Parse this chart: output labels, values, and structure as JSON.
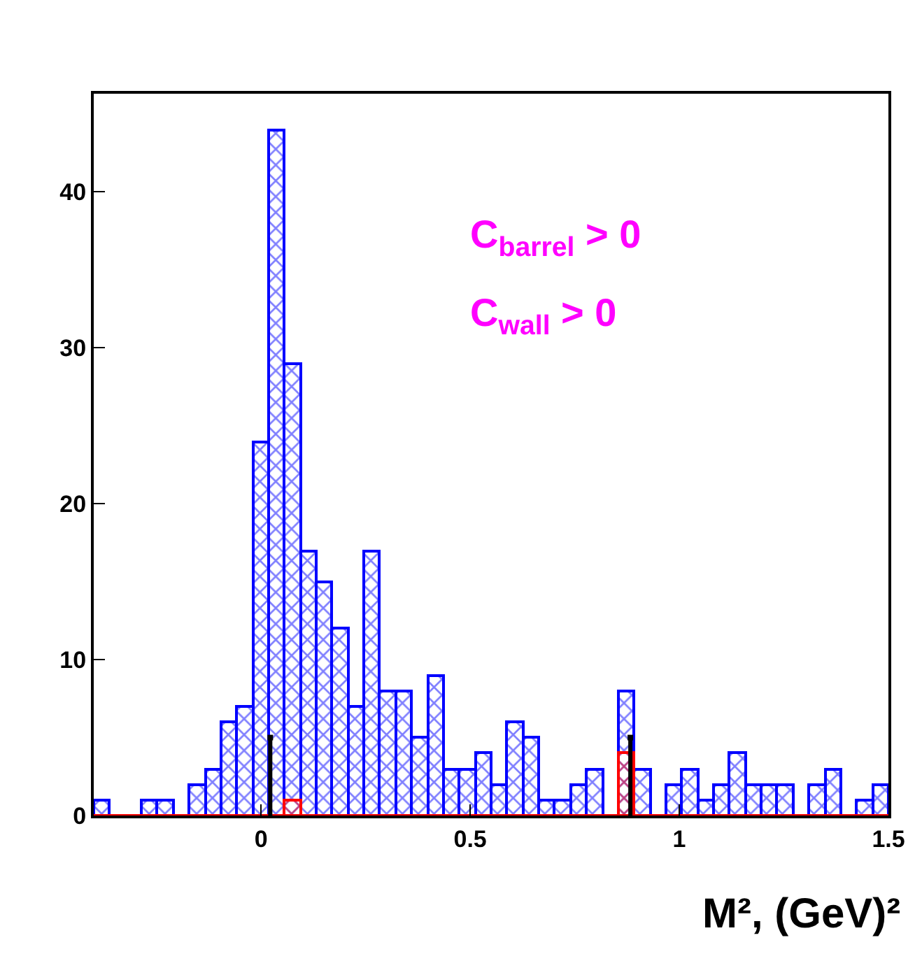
{
  "chart_data": {
    "type": "histogram",
    "xlabel": "M², (GeV)²",
    "bins": [
      -0.4,
      -0.362,
      -0.324,
      -0.286,
      -0.248,
      -0.21,
      -0.172,
      -0.134,
      -0.096,
      -0.058,
      -0.02,
      0.018,
      0.056,
      0.094,
      0.132,
      0.17,
      0.208,
      0.246,
      0.284,
      0.322,
      0.36,
      0.398,
      0.436,
      0.474,
      0.512,
      0.55,
      0.588,
      0.626,
      0.664,
      0.702,
      0.74,
      0.778,
      0.816,
      0.854,
      0.892,
      0.93,
      0.968,
      1.006,
      1.044,
      1.082,
      1.12,
      1.158,
      1.196,
      1.234,
      1.272,
      1.31,
      1.348,
      1.386,
      1.424,
      1.462,
      1.5
    ],
    "series": [
      {
        "color": "#0000ff",
        "values": [
          1,
          0,
          0,
          1,
          1,
          0,
          2,
          3,
          6,
          7,
          24,
          44,
          29,
          17,
          15,
          12,
          7,
          17,
          8,
          8,
          5,
          9,
          3,
          3,
          4,
          2,
          6,
          5,
          1,
          1,
          2,
          3,
          0,
          8,
          3,
          0,
          2,
          3,
          1,
          2,
          4,
          2,
          2,
          2,
          0,
          2,
          3,
          0,
          1,
          2
        ]
      },
      {
        "color": "#ff0000",
        "values": [
          0,
          0,
          0,
          0,
          0,
          0,
          0,
          0,
          0,
          0,
          0,
          0,
          1,
          0,
          0,
          0,
          0,
          0,
          0,
          0,
          0,
          0,
          0,
          0,
          0,
          0,
          0,
          0,
          0,
          0,
          0,
          0,
          0,
          4,
          0,
          0,
          0,
          0,
          0,
          0,
          0,
          0,
          0,
          0,
          0,
          0,
          0,
          0,
          0,
          0
        ]
      },
      {
        "type": "lollipop",
        "color": "#000000",
        "x": [
          0.022,
          0.883
        ],
        "values": [
          5,
          5
        ]
      }
    ],
    "annotations": [
      "C$_{barrel}$ > 0",
      "C$_{wall}$ > 0"
    ],
    "xlim": [
      -0.4,
      1.5
    ],
    "xticks": [
      0,
      0.5,
      1,
      1.5
    ],
    "ylim": [
      0,
      46.3
    ],
    "yticks": [
      0,
      10,
      20,
      30,
      40
    ]
  }
}
